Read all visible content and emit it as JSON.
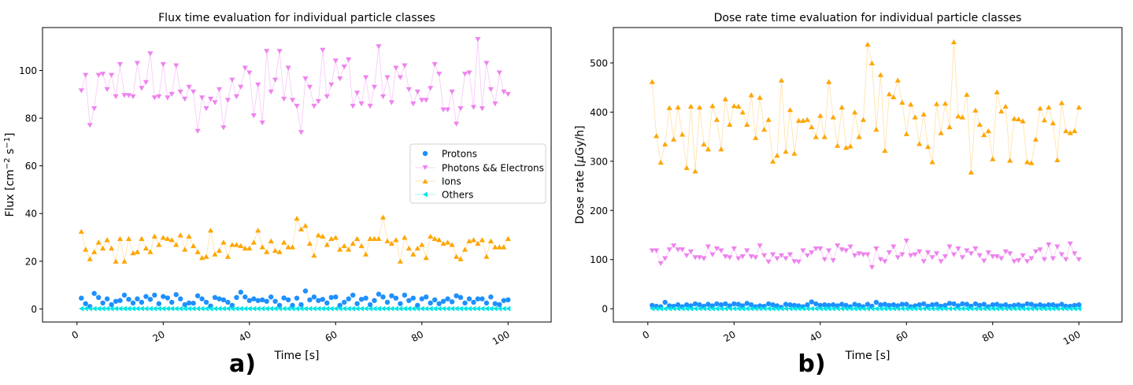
{
  "colors": {
    "protons": "#1e90ff",
    "photons": "#ee82ee",
    "ions": "#ffa500",
    "others": "#00e5e5"
  },
  "chart_data": [
    {
      "type": "scatter",
      "panel_label": "a)",
      "title": "Flux time evaluation for individual particle classes",
      "xlabel": "Time [s]",
      "ylabel_main": "Flux [cm",
      "ylabel_sup1": "−2",
      "ylabel_mid": " s",
      "ylabel_sup2": "−1",
      "ylabel_end": "]",
      "xlim": [
        -8,
        110
      ],
      "ylim": [
        -5.5,
        118
      ],
      "xticks": [
        0,
        20,
        40,
        60,
        80,
        100
      ],
      "yticks": [
        0,
        20,
        40,
        60,
        80,
        100
      ],
      "legend": {
        "position": "center-right",
        "entries": [
          "Protons",
          "Photons && Electrons",
          "Ions",
          "Others"
        ]
      },
      "x": [
        1,
        2,
        3,
        4,
        5,
        6,
        7,
        8,
        9,
        10,
        11,
        12,
        13,
        14,
        15,
        16,
        17,
        18,
        19,
        20,
        21,
        22,
        23,
        24,
        25,
        26,
        27,
        28,
        29,
        30,
        31,
        32,
        33,
        34,
        35,
        36,
        37,
        38,
        39,
        40,
        41,
        42,
        43,
        44,
        45,
        46,
        47,
        48,
        49,
        50,
        51,
        52,
        53,
        54,
        55,
        56,
        57,
        58,
        59,
        60,
        61,
        62,
        63,
        64,
        65,
        66,
        67,
        68,
        69,
        70,
        71,
        72,
        73,
        74,
        75,
        76,
        77,
        78,
        79,
        80,
        81,
        82,
        83,
        84,
        85,
        86,
        87,
        88,
        89,
        90,
        91,
        92,
        93,
        94,
        95,
        96,
        97,
        98,
        99,
        100
      ],
      "series": [
        {
          "name": "Protons",
          "marker": "circle",
          "values": [
            4.5,
            2.2,
            1.0,
            6.5,
            4.8,
            2.5,
            4.2,
            1.8,
            3.2,
            3.5,
            5.8,
            4.0,
            2.5,
            4.2,
            2.8,
            5.2,
            4.0,
            5.8,
            2.2,
            5.2,
            4.6,
            2.8,
            6.0,
            4.2,
            1.8,
            2.5,
            2.4,
            5.5,
            4.2,
            2.8,
            1.2,
            4.8,
            4.2,
            3.8,
            2.8,
            1.5,
            4.8,
            7.0,
            5.0,
            3.5,
            4.2,
            3.5,
            3.8,
            3.2,
            5.0,
            3.2,
            1.5,
            4.6,
            3.8,
            1.5,
            4.5,
            1.8,
            7.5,
            3.8,
            5.0,
            3.5,
            4.0,
            2.5,
            4.8,
            5.0,
            1.5,
            2.8,
            4.2,
            5.8,
            2.2,
            4.0,
            4.5,
            1.8,
            3.5,
            6.2,
            5.0,
            2.8,
            5.5,
            4.5,
            2.2,
            5.8,
            3.5,
            4.5,
            1.5,
            4.2,
            5.0,
            2.5,
            3.8,
            2.2,
            3.2,
            4.2,
            3.0,
            5.5,
            4.8,
            2.5,
            4.2,
            2.8,
            4.2,
            4.2,
            2.5,
            5.0,
            2.2,
            1.8,
            3.5,
            3.8
          ]
        },
        {
          "name": "Photons && Electrons",
          "marker": "triangle-down",
          "values": [
            91.5,
            98.0,
            77.0,
            84.0,
            98.0,
            98.5,
            92.0,
            98.0,
            89.0,
            102.5,
            89.5,
            89.5,
            89.0,
            103.0,
            92.5,
            95.0,
            107.0,
            88.5,
            89.0,
            102.5,
            88.5,
            90.0,
            102.0,
            91.0,
            88.0,
            93.0,
            91.0,
            74.5,
            88.5,
            84.0,
            88.0,
            86.5,
            92.0,
            76.0,
            87.5,
            96.0,
            89.0,
            93.0,
            101.0,
            99.0,
            81.0,
            94.0,
            78.0,
            108.0,
            91.0,
            96.0,
            108.0,
            88.0,
            101.0,
            87.5,
            85.0,
            74.0,
            96.5,
            93.0,
            85.0,
            87.0,
            108.5,
            89.0,
            94.0,
            104.0,
            96.5,
            101.5,
            104.5,
            85.0,
            90.5,
            86.0,
            97.0,
            85.0,
            93.0,
            110.0,
            89.0,
            97.0,
            86.5,
            101.0,
            97.0,
            102.0,
            92.0,
            86.0,
            91.0,
            87.5,
            87.5,
            92.5,
            102.5,
            98.5,
            83.5,
            83.5,
            91.0,
            77.5,
            84.0,
            98.5,
            99.0,
            84.5,
            113.0,
            84.0,
            103.0,
            92.0,
            86.0,
            99.0,
            91.0,
            90.0
          ]
        },
        {
          "name": "Ions",
          "marker": "triangle-up",
          "values": [
            32.5,
            25.0,
            21.0,
            24.0,
            28.0,
            25.5,
            29.0,
            25.5,
            20.0,
            29.5,
            20.0,
            29.5,
            23.5,
            24.0,
            29.5,
            25.5,
            24.0,
            30.5,
            27.0,
            30.0,
            29.5,
            29.0,
            27.0,
            31.0,
            25.0,
            30.5,
            26.5,
            24.0,
            21.5,
            22.0,
            33.0,
            23.0,
            24.5,
            28.0,
            22.0,
            27.0,
            27.0,
            26.5,
            25.5,
            25.5,
            28.0,
            33.0,
            26.0,
            24.0,
            28.5,
            24.5,
            24.0,
            28.0,
            26.0,
            26.0,
            38.0,
            33.5,
            35.0,
            27.5,
            22.5,
            31.0,
            30.5,
            27.0,
            29.5,
            30.0,
            25.0,
            26.5,
            25.0,
            27.5,
            29.5,
            26.5,
            23.0,
            29.5,
            29.5,
            29.5,
            38.5,
            28.5,
            27.5,
            29.0,
            20.0,
            30.0,
            25.5,
            23.0,
            25.5,
            27.0,
            21.5,
            30.5,
            29.5,
            29.0,
            27.5,
            28.0,
            27.0,
            22.0,
            21.0,
            25.0,
            28.5,
            29.0,
            27.5,
            29.0,
            22.0,
            28.5,
            26.0,
            26.0,
            26.0,
            29.5
          ]
        },
        {
          "name": "Others",
          "marker": "triangle-left",
          "values": [
            0.1,
            0.1,
            0.1,
            0.1,
            0.1,
            0.1,
            0.1,
            0.1,
            0.1,
            0.1,
            0.1,
            0.1,
            0.1,
            0.1,
            0.1,
            0.1,
            0.1,
            0.1,
            0.1,
            0.1,
            0.1,
            0.1,
            0.1,
            0.1,
            0.1,
            0.1,
            0.1,
            0.1,
            0.1,
            0.1,
            0.1,
            0.1,
            0.1,
            0.1,
            0.1,
            0.1,
            0.1,
            0.1,
            0.1,
            0.1,
            0.1,
            0.1,
            0.1,
            0.1,
            0.1,
            0.1,
            0.1,
            0.1,
            0.1,
            0.1,
            0.1,
            0.1,
            0.1,
            0.1,
            0.1,
            0.1,
            0.1,
            0.1,
            0.1,
            0.1,
            0.1,
            0.1,
            0.1,
            0.1,
            0.1,
            0.1,
            0.1,
            0.1,
            0.1,
            0.1,
            0.1,
            0.1,
            0.1,
            0.1,
            0.1,
            0.1,
            0.1,
            0.1,
            0.1,
            0.1,
            0.1,
            0.1,
            0.1,
            0.1,
            0.1,
            0.1,
            0.1,
            0.1,
            0.1,
            0.1,
            0.1,
            0.1,
            0.1,
            0.1,
            0.1,
            0.1,
            0.1,
            0.1,
            0.1,
            0.1
          ]
        }
      ]
    },
    {
      "type": "scatter",
      "panel_label": "b)",
      "title": "Dose rate time evaluation for individual particle classes",
      "xlabel": "Time [s]",
      "ylabel_main": "Dose rate [",
      "ylabel_mu": "μ",
      "ylabel_end": "Gy/h]",
      "xlim": [
        -8,
        110
      ],
      "ylim": [
        -27,
        572
      ],
      "xticks": [
        0,
        20,
        40,
        60,
        80,
        100
      ],
      "yticks": [
        0,
        100,
        200,
        300,
        400,
        500
      ],
      "x": [
        1,
        2,
        3,
        4,
        5,
        6,
        7,
        8,
        9,
        10,
        11,
        12,
        13,
        14,
        15,
        16,
        17,
        18,
        19,
        20,
        21,
        22,
        23,
        24,
        25,
        26,
        27,
        28,
        29,
        30,
        31,
        32,
        33,
        34,
        35,
        36,
        37,
        38,
        39,
        40,
        41,
        42,
        43,
        44,
        45,
        46,
        47,
        48,
        49,
        50,
        51,
        52,
        53,
        54,
        55,
        56,
        57,
        58,
        59,
        60,
        61,
        62,
        63,
        64,
        65,
        66,
        67,
        68,
        69,
        70,
        71,
        72,
        73,
        74,
        75,
        76,
        77,
        78,
        79,
        80,
        81,
        82,
        83,
        84,
        85,
        86,
        87,
        88,
        89,
        90,
        91,
        92,
        93,
        94,
        95,
        96,
        97,
        98,
        99,
        100
      ],
      "series": [
        {
          "name": "Protons",
          "marker": "circle",
          "values": [
            7,
            5,
            4,
            13,
            6,
            5,
            8,
            4,
            8,
            6,
            10,
            8,
            5,
            9,
            6,
            10,
            8,
            10,
            6,
            10,
            9,
            6,
            11,
            8,
            4,
            6,
            5,
            10,
            8,
            6,
            3,
            9,
            8,
            7,
            6,
            4,
            8,
            14,
            10,
            7,
            8,
            7,
            8,
            6,
            9,
            7,
            4,
            9,
            7,
            4,
            9,
            5,
            13,
            8,
            9,
            7,
            8,
            6,
            9,
            9,
            4,
            6,
            8,
            10,
            5,
            8,
            9,
            5,
            7,
            11,
            10,
            6,
            10,
            9,
            5,
            10,
            7,
            9,
            4,
            8,
            9,
            6,
            8,
            5,
            7,
            8,
            6,
            10,
            9,
            6,
            8,
            6,
            8,
            8,
            6,
            9,
            5,
            5,
            7,
            8
          ]
        },
        {
          "name": "Photons && Electrons",
          "marker": "triangle-down",
          "values": [
            118,
            118,
            92,
            102,
            120,
            128,
            120,
            120,
            108,
            116,
            104,
            104,
            102,
            126,
            110,
            122,
            118,
            106,
            104,
            122,
            102,
            106,
            118,
            106,
            104,
            128,
            108,
            95,
            110,
            102,
            108,
            102,
            110,
            96,
            95,
            118,
            108,
            114,
            122,
            122,
            100,
            118,
            98,
            128,
            120,
            118,
            126,
            108,
            112,
            110,
            110,
            84,
            122,
            100,
            96,
            114,
            126,
            104,
            110,
            138,
            108,
            110,
            116,
            96,
            114,
            104,
            112,
            96,
            106,
            126,
            110,
            122,
            104,
            118,
            112,
            122,
            108,
            97,
            114,
            106,
            106,
            102,
            116,
            112,
            96,
            98,
            108,
            96,
            102,
            116,
            120,
            100,
            130,
            102,
            126,
            110,
            100,
            132,
            112,
            100
          ]
        },
        {
          "name": "Ions",
          "marker": "triangle-up",
          "values": [
            462,
            352,
            298,
            335,
            409,
            345,
            410,
            355,
            287,
            412,
            280,
            410,
            335,
            325,
            413,
            385,
            325,
            427,
            375,
            413,
            412,
            400,
            375,
            435,
            348,
            430,
            365,
            385,
            300,
            312,
            465,
            320,
            405,
            316,
            383,
            383,
            385,
            370,
            350,
            393,
            350,
            462,
            390,
            332,
            410,
            328,
            331,
            400,
            350,
            385,
            538,
            500,
            365,
            476,
            322,
            437,
            431,
            465,
            420,
            356,
            416,
            390,
            336,
            396,
            330,
            299,
            417,
            358,
            418,
            370,
            543,
            392,
            390,
            436,
            278,
            404,
            375,
            354,
            362,
            305,
            441,
            402,
            412,
            302,
            387,
            386,
            382,
            299,
            297,
            345,
            408,
            384,
            410,
            378,
            303,
            419,
            362,
            358,
            362,
            410
          ]
        },
        {
          "name": "Others",
          "marker": "triangle-left",
          "values": [
            0.2,
            0.2,
            0.2,
            0.2,
            0.2,
            0.2,
            0.2,
            0.2,
            0.2,
            0.2,
            0.2,
            0.2,
            0.2,
            0.2,
            0.2,
            0.2,
            0.2,
            0.2,
            0.2,
            0.2,
            0.2,
            0.2,
            0.2,
            0.2,
            0.2,
            0.2,
            0.2,
            0.2,
            0.2,
            0.2,
            0.2,
            0.2,
            0.2,
            0.2,
            0.2,
            0.2,
            0.2,
            0.2,
            0.2,
            0.2,
            0.2,
            0.2,
            0.2,
            0.2,
            0.2,
            0.2,
            0.2,
            0.2,
            0.2,
            0.2,
            0.2,
            0.2,
            0.2,
            0.2,
            0.2,
            0.2,
            0.2,
            0.2,
            0.2,
            0.2,
            0.2,
            0.2,
            0.2,
            0.2,
            0.2,
            0.2,
            0.2,
            0.2,
            0.2,
            0.2,
            0.2,
            0.2,
            0.2,
            0.2,
            0.2,
            0.2,
            0.2,
            0.2,
            0.2,
            0.2,
            0.2,
            0.2,
            0.2,
            0.2,
            0.2,
            0.2,
            0.2,
            0.2,
            0.2,
            0.2,
            0.2,
            0.2,
            0.2,
            0.2,
            0.2,
            0.2,
            0.2,
            0.2,
            0.2,
            0.2
          ]
        }
      ]
    }
  ]
}
